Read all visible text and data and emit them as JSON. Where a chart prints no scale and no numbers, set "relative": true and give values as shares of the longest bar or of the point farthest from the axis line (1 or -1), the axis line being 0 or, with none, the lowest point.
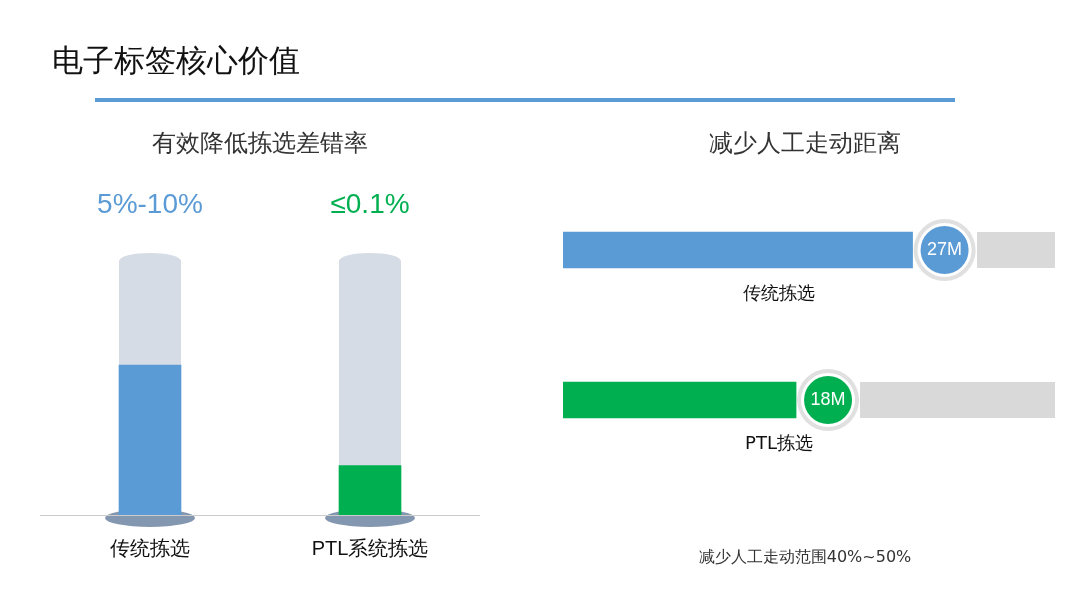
{
  "chart_data": [
    {
      "type": "bar",
      "title": "电子标签核心价值",
      "subtitle": "有效降低拣选差错率",
      "categories": [
        "传统拣选",
        "PTL系统拣选"
      ],
      "values": [
        1,
        0.33
      ],
      "colors": [
        "#5b9bd5",
        "#00b050"
      ],
      "relative": true,
      "annotations": [
        "5%-10%",
        "≤0.1%"
      ]
    },
    {
      "type": "bar",
      "orientation": "horizontal",
      "title": "减少人工走动距离",
      "categories": [
        "传统拣选",
        "PTL拣选"
      ],
      "values": [
        27,
        18
      ],
      "colors": [
        "#5b9bd5",
        "#00b050"
      ],
      "xlim": [
        0,
        38
      ],
      "tick_labels": false,
      "value_labels": [
        "27M",
        "18M"
      ],
      "annotations": [
        "减少人工走动范围40%~50%"
      ]
    }
  ]
}
